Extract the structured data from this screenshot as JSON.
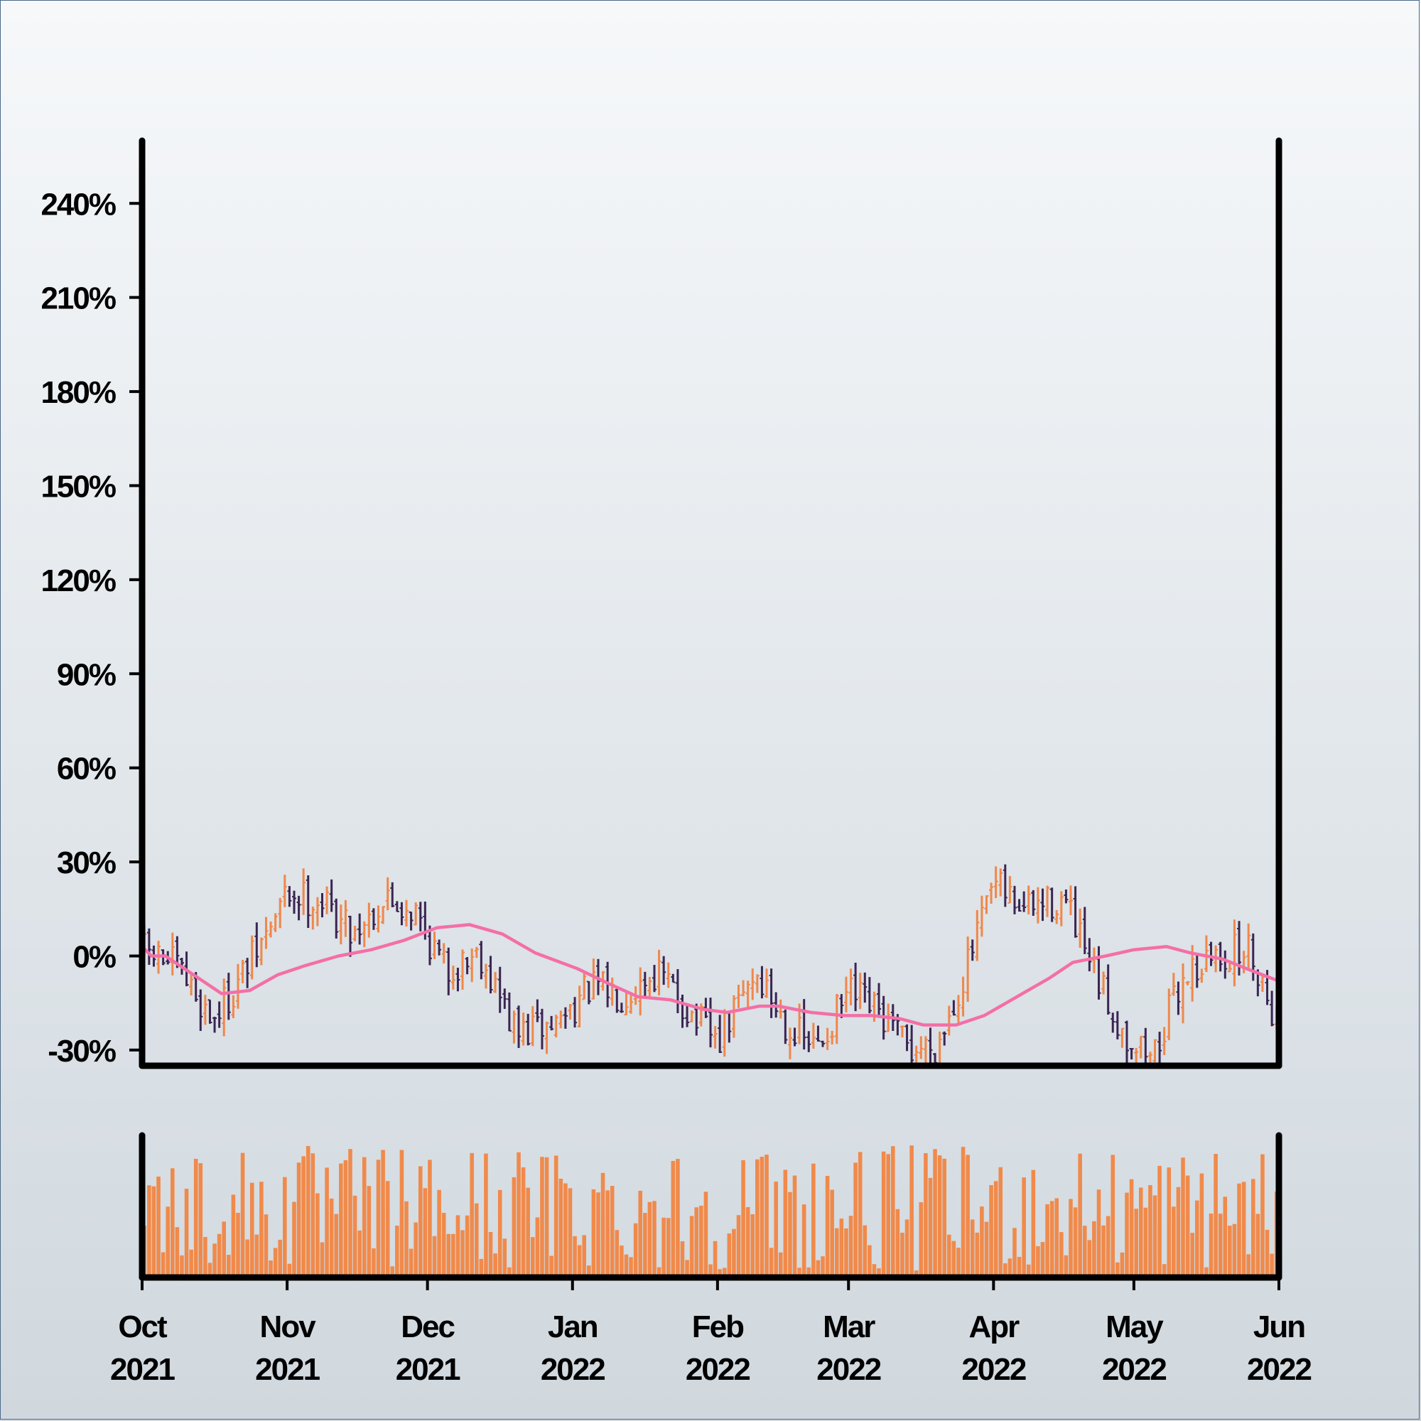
{
  "chart_data": {
    "type": "ohlc",
    "title": "",
    "xlabel": "",
    "ylabel": "",
    "price_ylim": [
      -0.35,
      2.6
    ],
    "y_ticks": [
      {
        "value": -0.3,
        "label": "-30%"
      },
      {
        "value": 0.0,
        "label": "0%"
      },
      {
        "value": 0.3,
        "label": "30%"
      },
      {
        "value": 0.6,
        "label": "60%"
      },
      {
        "value": 0.9,
        "label": "90%"
      },
      {
        "value": 1.2,
        "label": "120%"
      },
      {
        "value": 1.5,
        "label": "150%"
      },
      {
        "value": 1.8,
        "label": "180%"
      },
      {
        "value": 2.1,
        "label": "210%"
      },
      {
        "value": 2.4,
        "label": "240%"
      }
    ],
    "x_range": [
      "2021-10-01",
      "2022-06-01"
    ],
    "x_ticks": [
      {
        "date": "2021-10-01",
        "month": "Oct",
        "year": "2021"
      },
      {
        "date": "2021-11-01",
        "month": "Nov",
        "year": "2021"
      },
      {
        "date": "2021-12-01",
        "month": "Dec",
        "year": "2021"
      },
      {
        "date": "2022-01-01",
        "month": "Jan",
        "year": "2022"
      },
      {
        "date": "2022-02-01",
        "month": "Feb",
        "year": "2022"
      },
      {
        "date": "2022-03-01",
        "month": "Mar",
        "year": "2022"
      },
      {
        "date": "2022-04-01",
        "month": "Apr",
        "year": "2022"
      },
      {
        "date": "2022-05-01",
        "month": "May",
        "year": "2022"
      },
      {
        "date": "2022-06-01",
        "month": "Jun",
        "year": "2022"
      }
    ],
    "close_anchors": [
      {
        "date": "2021-10-01",
        "value": 0.02
      },
      {
        "date": "2021-10-08",
        "value": -0.03
      },
      {
        "date": "2021-10-16",
        "value": -0.2
      },
      {
        "date": "2021-10-20",
        "value": -0.12
      },
      {
        "date": "2021-10-27",
        "value": 0.05
      },
      {
        "date": "2021-11-01",
        "value": 0.2
      },
      {
        "date": "2021-11-08",
        "value": 0.18
      },
      {
        "date": "2021-11-15",
        "value": 0.08
      },
      {
        "date": "2021-11-22",
        "value": 0.18
      },
      {
        "date": "2021-11-28",
        "value": 0.15
      },
      {
        "date": "2021-12-05",
        "value": -0.05
      },
      {
        "date": "2021-12-12",
        "value": 0.02
      },
      {
        "date": "2021-12-20",
        "value": -0.25
      },
      {
        "date": "2021-12-28",
        "value": -0.22
      },
      {
        "date": "2022-01-05",
        "value": -0.1
      },
      {
        "date": "2022-01-12",
        "value": -0.12
      },
      {
        "date": "2022-01-19",
        "value": -0.05
      },
      {
        "date": "2022-01-26",
        "value": -0.18
      },
      {
        "date": "2022-02-01",
        "value": -0.28
      },
      {
        "date": "2022-02-09",
        "value": -0.05
      },
      {
        "date": "2022-02-16",
        "value": -0.22
      },
      {
        "date": "2022-02-22",
        "value": -0.3
      },
      {
        "date": "2022-03-01",
        "value": -0.12
      },
      {
        "date": "2022-03-07",
        "value": -0.18
      },
      {
        "date": "2022-03-14",
        "value": -0.3
      },
      {
        "date": "2022-03-20",
        "value": -0.28
      },
      {
        "date": "2022-03-26",
        "value": -0.05
      },
      {
        "date": "2022-04-01",
        "value": 0.22
      },
      {
        "date": "2022-04-08",
        "value": 0.15
      },
      {
        "date": "2022-04-16",
        "value": 0.18
      },
      {
        "date": "2022-04-22",
        "value": -0.05
      },
      {
        "date": "2022-04-29",
        "value": -0.25
      },
      {
        "date": "2022-05-05",
        "value": -0.32
      },
      {
        "date": "2022-05-12",
        "value": -0.05
      },
      {
        "date": "2022-05-19",
        "value": 0.0
      },
      {
        "date": "2022-05-26",
        "value": 0.02
      },
      {
        "date": "2022-06-01",
        "value": -0.22
      }
    ],
    "moving_average": [
      {
        "date": "2021-10-01",
        "value": 0.03
      },
      {
        "date": "2021-10-03",
        "value": 0.0
      },
      {
        "date": "2021-10-06",
        "value": 0.0
      },
      {
        "date": "2021-10-12",
        "value": -0.06
      },
      {
        "date": "2021-10-18",
        "value": -0.12
      },
      {
        "date": "2021-10-24",
        "value": -0.11
      },
      {
        "date": "2021-10-30",
        "value": -0.06
      },
      {
        "date": "2021-11-05",
        "value": -0.03
      },
      {
        "date": "2021-11-12",
        "value": 0.0
      },
      {
        "date": "2021-11-19",
        "value": 0.02
      },
      {
        "date": "2021-11-26",
        "value": 0.05
      },
      {
        "date": "2021-12-03",
        "value": 0.09
      },
      {
        "date": "2021-12-10",
        "value": 0.1
      },
      {
        "date": "2021-12-17",
        "value": 0.07
      },
      {
        "date": "2021-12-24",
        "value": 0.01
      },
      {
        "date": "2022-01-02",
        "value": -0.04
      },
      {
        "date": "2022-01-09",
        "value": -0.09
      },
      {
        "date": "2022-01-15",
        "value": -0.13
      },
      {
        "date": "2022-01-22",
        "value": -0.14
      },
      {
        "date": "2022-01-29",
        "value": -0.17
      },
      {
        "date": "2022-02-03",
        "value": -0.18
      },
      {
        "date": "2022-02-10",
        "value": -0.16
      },
      {
        "date": "2022-02-14",
        "value": -0.16
      },
      {
        "date": "2022-02-21",
        "value": -0.18
      },
      {
        "date": "2022-02-28",
        "value": -0.19
      },
      {
        "date": "2022-03-06",
        "value": -0.19
      },
      {
        "date": "2022-03-12",
        "value": -0.2
      },
      {
        "date": "2022-03-17",
        "value": -0.22
      },
      {
        "date": "2022-03-24",
        "value": -0.22
      },
      {
        "date": "2022-03-30",
        "value": -0.19
      },
      {
        "date": "2022-04-06",
        "value": -0.13
      },
      {
        "date": "2022-04-13",
        "value": -0.07
      },
      {
        "date": "2022-04-18",
        "value": -0.02
      },
      {
        "date": "2022-04-25",
        "value": 0.0
      },
      {
        "date": "2022-05-01",
        "value": 0.02
      },
      {
        "date": "2022-05-08",
        "value": 0.03
      },
      {
        "date": "2022-05-13",
        "value": 0.01
      },
      {
        "date": "2022-05-20",
        "value": -0.01
      },
      {
        "date": "2022-05-25",
        "value": -0.04
      },
      {
        "date": "2022-06-01",
        "value": -0.08
      }
    ],
    "volume_relative_range": [
      0.0,
      1.0
    ],
    "colors": {
      "up": "#f0874a",
      "down": "#3a2552",
      "moving_average": "#f46fa6",
      "volume": "#f08a4b",
      "axes": "#000000",
      "frame_border": "#4a6a8a"
    },
    "grid": false,
    "legend": "none"
  }
}
